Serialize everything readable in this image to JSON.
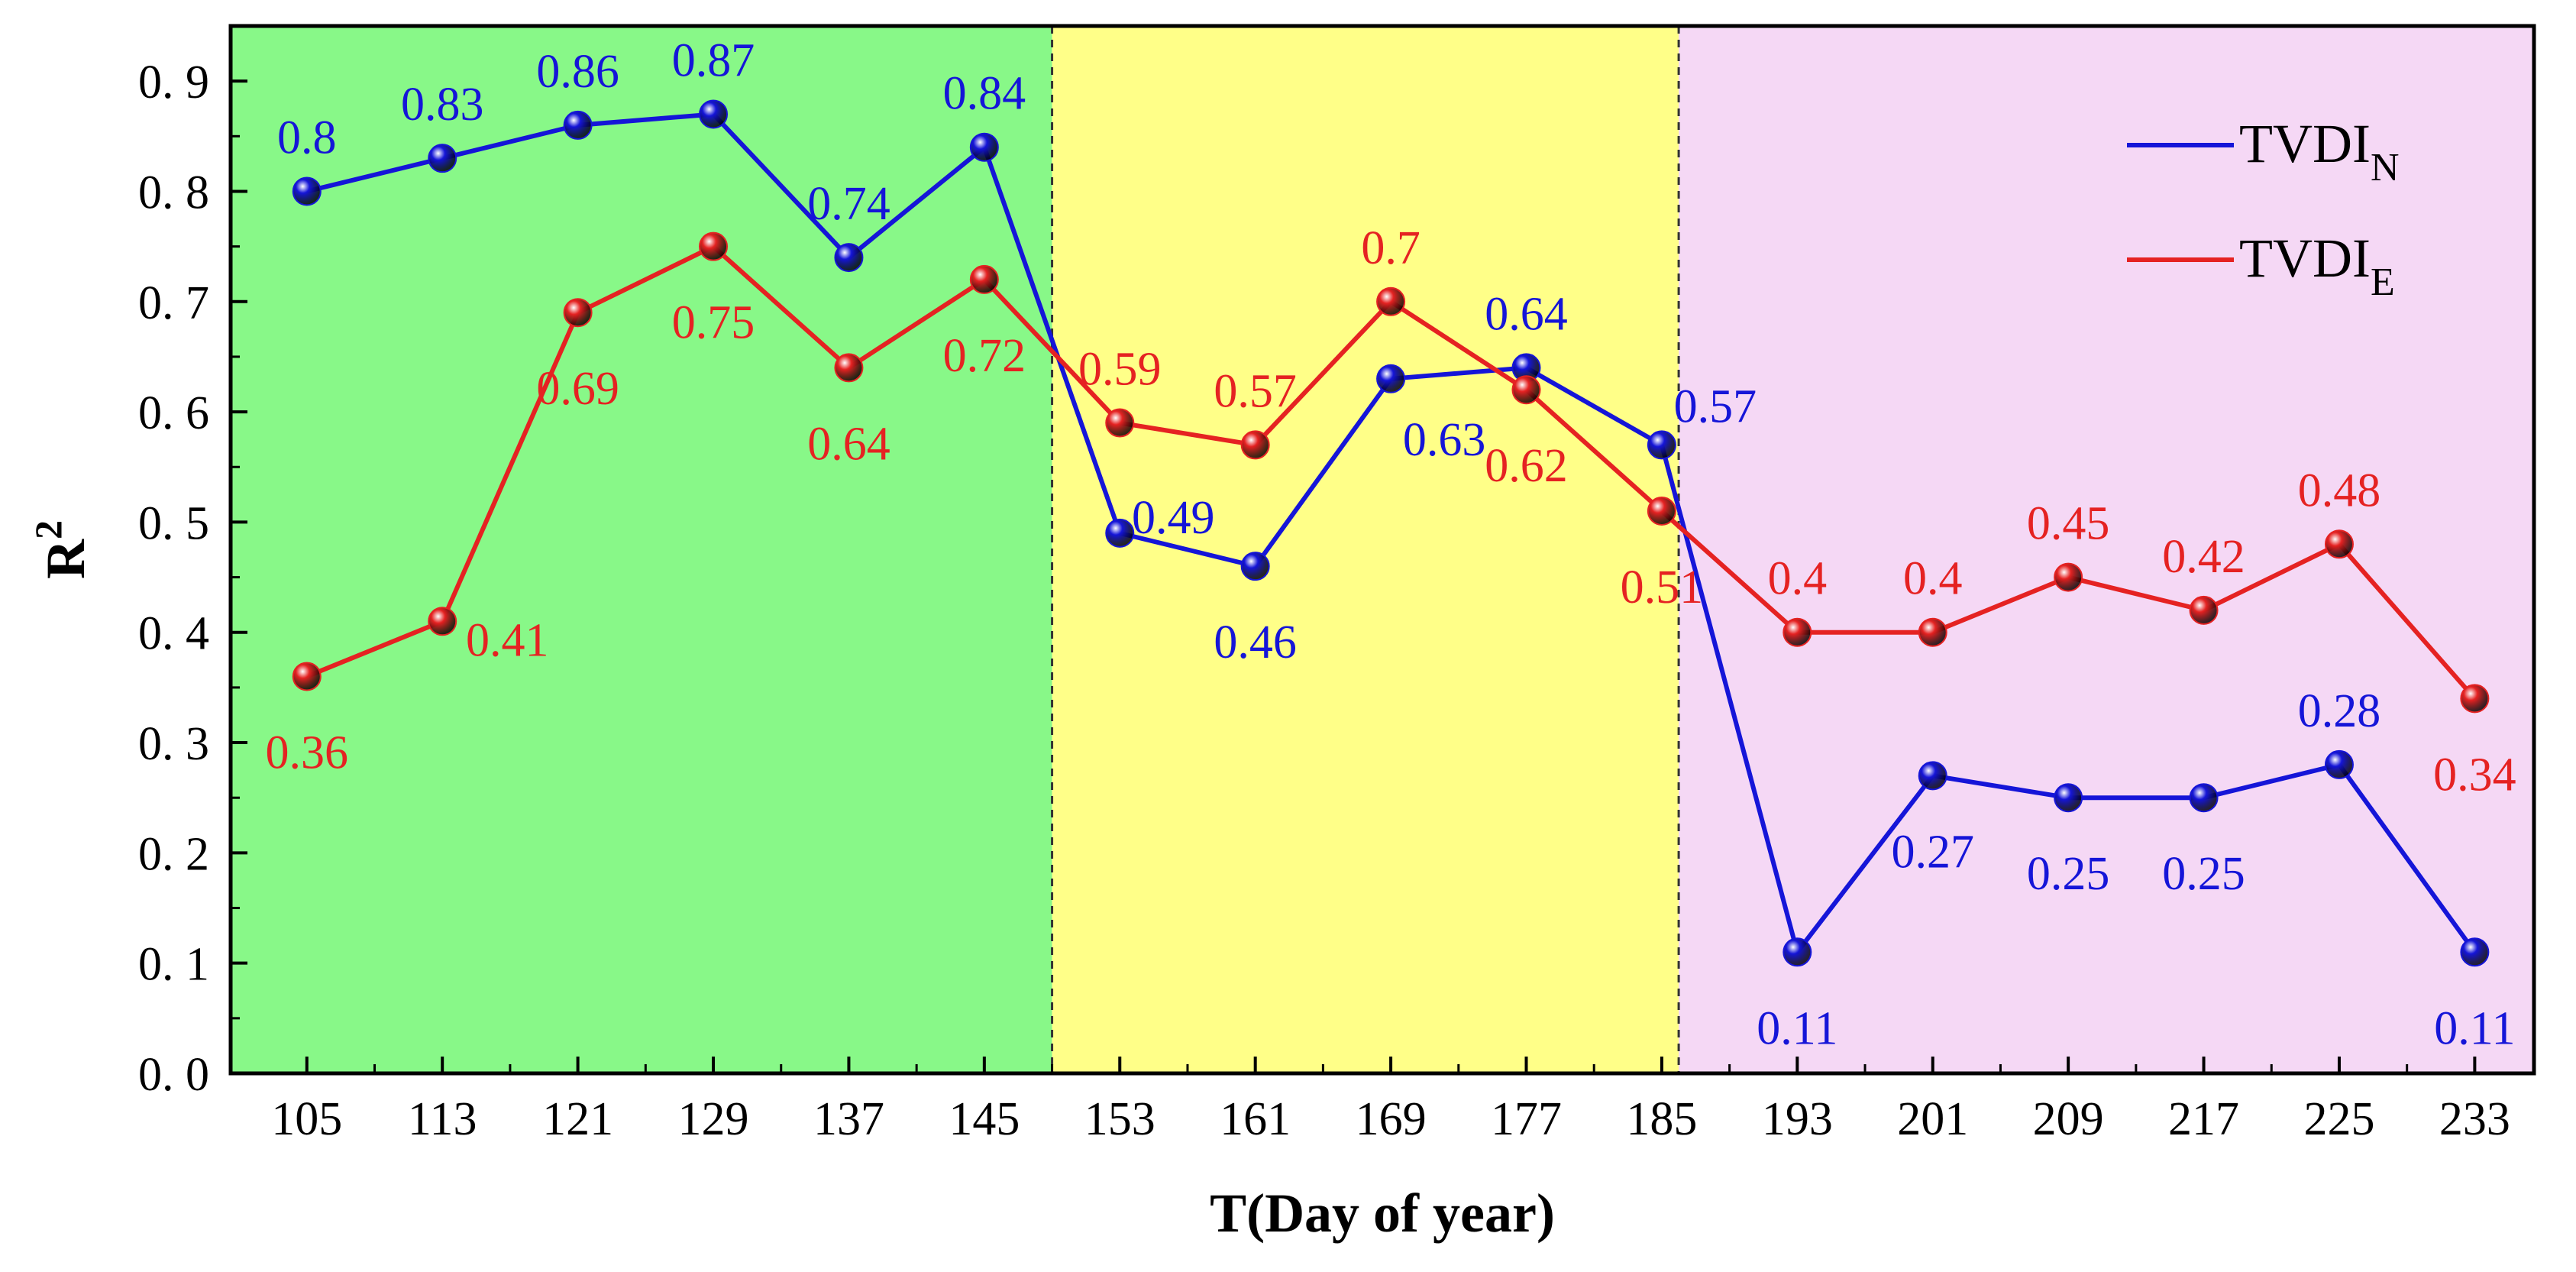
{
  "chart_data": {
    "type": "line",
    "title": "",
    "xlabel": "T(Day of year)",
    "ylabel": "R",
    "ylabel_superscript": "2",
    "x": [
      105,
      113,
      121,
      129,
      137,
      145,
      153,
      161,
      169,
      177,
      185,
      193,
      201,
      209,
      217,
      225,
      233
    ],
    "xlim": [
      100.5,
      236.5
    ],
    "ylim": [
      0,
      0.95
    ],
    "yticks": [
      "0. 0",
      "0. 1",
      "0. 2",
      "0. 3",
      "0. 4",
      "0. 5",
      "0. 6",
      "0. 7",
      "0. 8",
      "0. 9"
    ],
    "ytick_values": [
      0,
      0.1,
      0.2,
      0.3,
      0.4,
      0.5,
      0.6,
      0.7,
      0.8,
      0.9
    ],
    "regions": [
      {
        "from": 100.5,
        "to": 149.0,
        "color": "#88F888"
      },
      {
        "from": 149.0,
        "to": 186.0,
        "color": "#FFFF88"
      },
      {
        "from": 186.0,
        "to": 236.5,
        "color": "#F5D8F5"
      }
    ],
    "series": [
      {
        "name": "TVDI",
        "subscript": "N",
        "color": "#1515D8",
        "values": [
          0.8,
          0.83,
          0.86,
          0.87,
          0.74,
          0.84,
          0.49,
          0.46,
          0.63,
          0.64,
          0.57,
          0.11,
          0.27,
          0.25,
          0.25,
          0.28,
          0.11
        ],
        "labels": [
          "0.8",
          "0.83",
          "0.86",
          "0.87",
          "0.74",
          "0.84",
          "0.49",
          "0.46",
          "0.63",
          "0.64",
          "0.57",
          "0.11",
          "0.27",
          "0.25",
          "0.25",
          "0.28",
          "0.11"
        ]
      },
      {
        "name": "TVDI",
        "subscript": "E",
        "color": "#E52222",
        "values": [
          0.36,
          0.41,
          0.69,
          0.75,
          0.64,
          0.72,
          0.59,
          0.57,
          0.7,
          0.62,
          0.51,
          0.4,
          0.4,
          0.45,
          0.42,
          0.48,
          0.34
        ],
        "labels": [
          "0.36",
          "0.41",
          "0.69",
          "0.75",
          "0.64",
          "0.72",
          "0.59",
          "0.57",
          "0.7",
          "0.62",
          "0.51",
          "0.4",
          "0.4",
          "0.45",
          "0.42",
          "0.48",
          "0.34"
        ]
      }
    ],
    "legend": "top-right"
  }
}
